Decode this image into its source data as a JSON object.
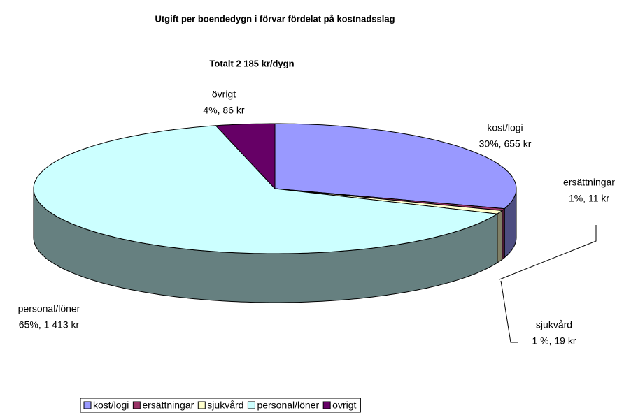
{
  "chart_data": {
    "type": "pie",
    "title": "Utgift per boendedygn i förvar fördelat på kostnadsslag",
    "subtitle": "Totalt 2 185 kr/dygn",
    "categories": [
      "kost/logi",
      "ersättningar",
      "sjukvård",
      "personal/löner",
      "övrigt"
    ],
    "values": [
      655,
      11,
      19,
      1413,
      86
    ],
    "value_labels": [
      "30%, 655 kr",
      "1%, 11 kr",
      "1 %, 19 kr",
      "65%, 1 413 kr",
      "4%, 86 kr"
    ],
    "colors": [
      "#9999ff",
      "#993366",
      "#ffffcc",
      "#ccffff",
      "#660066"
    ],
    "legend": "bottom"
  }
}
